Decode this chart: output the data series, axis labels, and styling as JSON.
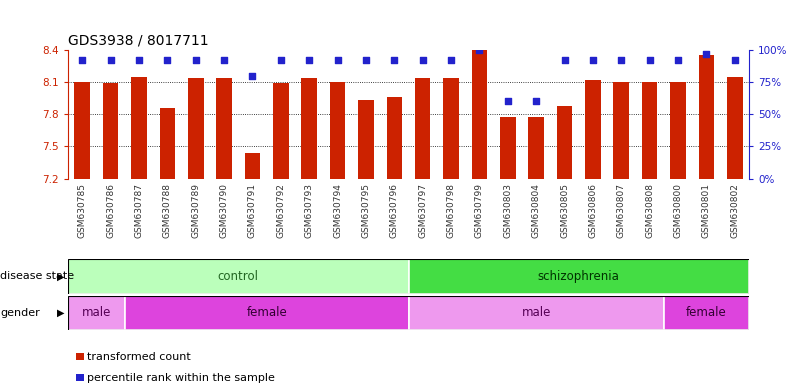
{
  "title": "GDS3938 / 8017711",
  "samples": [
    "GSM630785",
    "GSM630786",
    "GSM630787",
    "GSM630788",
    "GSM630789",
    "GSM630790",
    "GSM630791",
    "GSM630792",
    "GSM630793",
    "GSM630794",
    "GSM630795",
    "GSM630796",
    "GSM630797",
    "GSM630798",
    "GSM630799",
    "GSM630803",
    "GSM630804",
    "GSM630805",
    "GSM630806",
    "GSM630807",
    "GSM630808",
    "GSM630800",
    "GSM630801",
    "GSM630802"
  ],
  "bar_values": [
    8.1,
    8.09,
    8.15,
    7.86,
    8.14,
    8.14,
    7.44,
    8.09,
    8.14,
    8.1,
    7.93,
    7.96,
    8.14,
    8.14,
    8.4,
    7.77,
    7.77,
    7.88,
    8.12,
    8.1,
    8.1,
    8.1,
    8.35,
    8.15
  ],
  "percentile_values": [
    92,
    92,
    92,
    92,
    92,
    92,
    80,
    92,
    92,
    92,
    92,
    92,
    92,
    92,
    100,
    60,
    60,
    92,
    92,
    92,
    92,
    92,
    97,
    92
  ],
  "ylim_left": [
    7.2,
    8.4
  ],
  "ylim_right": [
    0,
    100
  ],
  "yticks_left": [
    7.2,
    7.5,
    7.8,
    8.1,
    8.4
  ],
  "yticks_right": [
    0,
    25,
    50,
    75,
    100
  ],
  "ytick_labels_right": [
    "0%",
    "25%",
    "50%",
    "75%",
    "100%"
  ],
  "hgrid_lines": [
    8.1,
    7.8,
    7.5
  ],
  "bar_color": "#cc2200",
  "dot_color": "#2222cc",
  "bar_width": 0.55,
  "dot_size": 16,
  "left_label_color": "#cc2200",
  "right_label_color": "#2222cc",
  "tick_fontsize": 7.5,
  "sample_fontsize": 6.5,
  "title_fontsize": 10,
  "disease_state_blocks": [
    {
      "start": 0,
      "end": 12,
      "label": "control",
      "facecolor": "#bbffbb",
      "textcolor": "#226622"
    },
    {
      "start": 12,
      "end": 24,
      "label": "schizophrenia",
      "facecolor": "#44dd44",
      "textcolor": "#003300"
    }
  ],
  "gender_blocks": [
    {
      "start": 0,
      "end": 2,
      "label": "male",
      "facecolor": "#ee99ee",
      "textcolor": "#550055"
    },
    {
      "start": 2,
      "end": 12,
      "label": "female",
      "facecolor": "#dd44dd",
      "textcolor": "#330033"
    },
    {
      "start": 12,
      "end": 21,
      "label": "male",
      "facecolor": "#ee99ee",
      "textcolor": "#550055"
    },
    {
      "start": 21,
      "end": 24,
      "label": "female",
      "facecolor": "#dd44dd",
      "textcolor": "#330033"
    }
  ],
  "legend_items": [
    {
      "label": "transformed count",
      "color": "#cc2200"
    },
    {
      "label": "percentile rank within the sample",
      "color": "#2222cc"
    }
  ],
  "row_label_fontsize": 8,
  "row_text_fontsize": 8.5
}
